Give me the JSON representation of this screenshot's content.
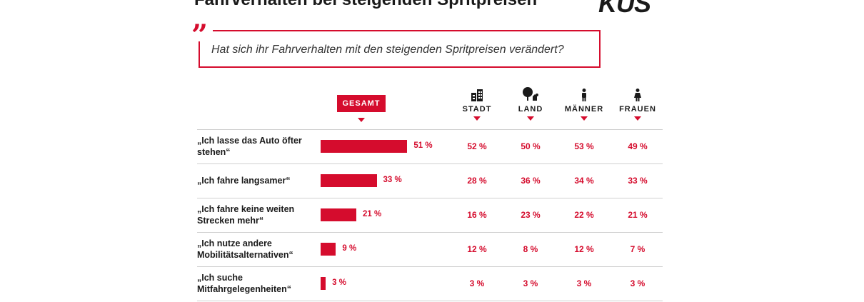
{
  "title": "Fahrverhalten bei steigenden Spritpreisen",
  "logo_text": "KUS",
  "question": "Hat sich ihr Fahrverhalten mit den steigenden Spritpreisen verändert?",
  "quote_mark": "”",
  "accent_color": "#d50c2d",
  "columns": {
    "gesamt": "GESAMT",
    "stadt": "STADT",
    "land": "LAND",
    "maenner": "MÄNNER",
    "frauen": "FRAUEN"
  },
  "icons": {
    "stadt": "city-buildings-icon",
    "land": "tree-farm-icon",
    "maenner": "man-icon",
    "frauen": "woman-icon"
  },
  "rows": [
    {
      "label": "„Ich lasse das Auto öfter stehen“",
      "gesamt": "51 %",
      "stadt": "52 %",
      "land": "50 %",
      "maenner": "53 %",
      "frauen": "49 %"
    },
    {
      "label": "„Ich fahre langsamer“",
      "gesamt": "33 %",
      "stadt": "28 %",
      "land": "36 %",
      "maenner": "34 %",
      "frauen": "33 %"
    },
    {
      "label": "„Ich fahre keine weiten Strecken mehr“",
      "gesamt": "21 %",
      "stadt": "16 %",
      "land": "23 %",
      "maenner": "22 %",
      "frauen": "21 %"
    },
    {
      "label": "„Ich nutze andere Mobilitätsalternativen“",
      "gesamt": "9 %",
      "stadt": "12 %",
      "land": "8 %",
      "maenner": "12 %",
      "frauen": "7 %"
    },
    {
      "label": "„Ich suche Mitfahrgelegenheiten“",
      "gesamt": "3 %",
      "stadt": "3 %",
      "land": "3 %",
      "maenner": "3 %",
      "frauen": "3 %"
    }
  ],
  "chart_data": {
    "type": "bar",
    "title": "Fahrverhalten bei steigenden Spritpreisen",
    "categories": [
      "„Ich lasse das Auto öfter stehen“",
      "„Ich fahre langsamer“",
      "„Ich fahre keine weiten Strecken mehr“",
      "„Ich nutze andere Mobilitätsalternativen“",
      "„Ich suche Mitfahrgelegenheiten“"
    ],
    "series": [
      {
        "name": "GESAMT",
        "values": [
          51,
          33,
          21,
          9,
          3
        ]
      },
      {
        "name": "STADT",
        "values": [
          52,
          28,
          16,
          12,
          3
        ]
      },
      {
        "name": "LAND",
        "values": [
          50,
          36,
          23,
          8,
          3
        ]
      },
      {
        "name": "MÄNNER",
        "values": [
          53,
          34,
          22,
          12,
          3
        ]
      },
      {
        "name": "FRAUEN",
        "values": [
          49,
          33,
          21,
          7,
          3
        ]
      }
    ],
    "unit": "%",
    "orientation": "horizontal"
  }
}
